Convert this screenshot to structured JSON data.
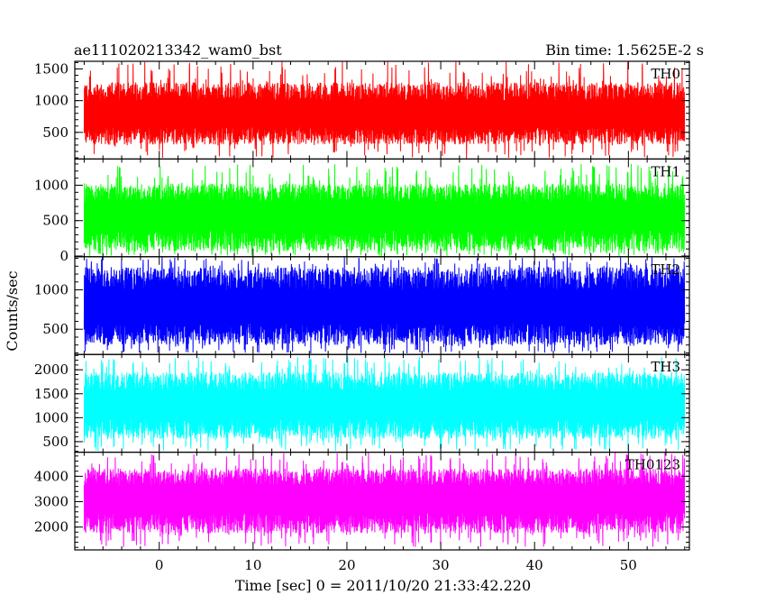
{
  "header": {
    "left_title": "ae111020213342_wam0_bst",
    "right_title": "Bin time: 1.5625E-2 s"
  },
  "chart_data": {
    "type": "line",
    "xlabel": "Time [sec] 0 = 2011/10/20 21:33:42.220",
    "ylabel": "Counts/sec",
    "xlim": [
      -9,
      56.5
    ],
    "x_range_data": [
      -8,
      56
    ],
    "bin_time_s": 0.015625,
    "x_ticks": [
      0,
      10,
      20,
      30,
      40,
      50
    ],
    "x_tick_labels": [
      "0",
      "10",
      "20",
      "30",
      "40",
      "50"
    ],
    "grid": false,
    "legend": "none",
    "panels": [
      {
        "name": "TH0",
        "color": "#ff0000",
        "ylim": [
          80,
          1620
        ],
        "y_ticks": [
          500,
          1000,
          1500
        ],
        "y_tick_labels": [
          "500",
          "1000",
          "1500"
        ],
        "band_low": 310,
        "band_high": 1290,
        "spike_min": 90,
        "spike_max": 1620,
        "mean": 760
      },
      {
        "name": "TH1",
        "color": "#00ff00",
        "ylim": [
          -10,
          1370
        ],
        "y_ticks": [
          0,
          500,
          1000
        ],
        "y_tick_labels": [
          "0",
          "500",
          "1000"
        ],
        "band_low": 70,
        "band_high": 1020,
        "spike_min": 0,
        "spike_max": 1310,
        "mean": 560
      },
      {
        "name": "TH2",
        "color": "#0000ff",
        "ylim": [
          180,
          1420
        ],
        "y_ticks": [
          500,
          1000
        ],
        "y_tick_labels": [
          "500",
          "1000"
        ],
        "band_low": 300,
        "band_high": 1290,
        "spike_min": 190,
        "spike_max": 1420,
        "mean": 760
      },
      {
        "name": "TH3",
        "color": "#00ffff",
        "ylim": [
          280,
          2320
        ],
        "y_ticks": [
          500,
          1000,
          1500,
          2000
        ],
        "y_tick_labels": [
          "500",
          "1000",
          "1500",
          "2000"
        ],
        "band_low": 560,
        "band_high": 1950,
        "spike_min": 300,
        "spike_max": 2280,
        "mean": 1230
      },
      {
        "name": "TH0123",
        "color": "#ff00ff",
        "ylim": [
          1100,
          4950
        ],
        "y_ticks": [
          2000,
          3000,
          4000
        ],
        "y_tick_labels": [
          "2000",
          "3000",
          "4000"
        ],
        "band_low": 1750,
        "band_high": 4300,
        "spike_min": 1200,
        "spike_max": 4950,
        "mean": 3100
      }
    ]
  }
}
